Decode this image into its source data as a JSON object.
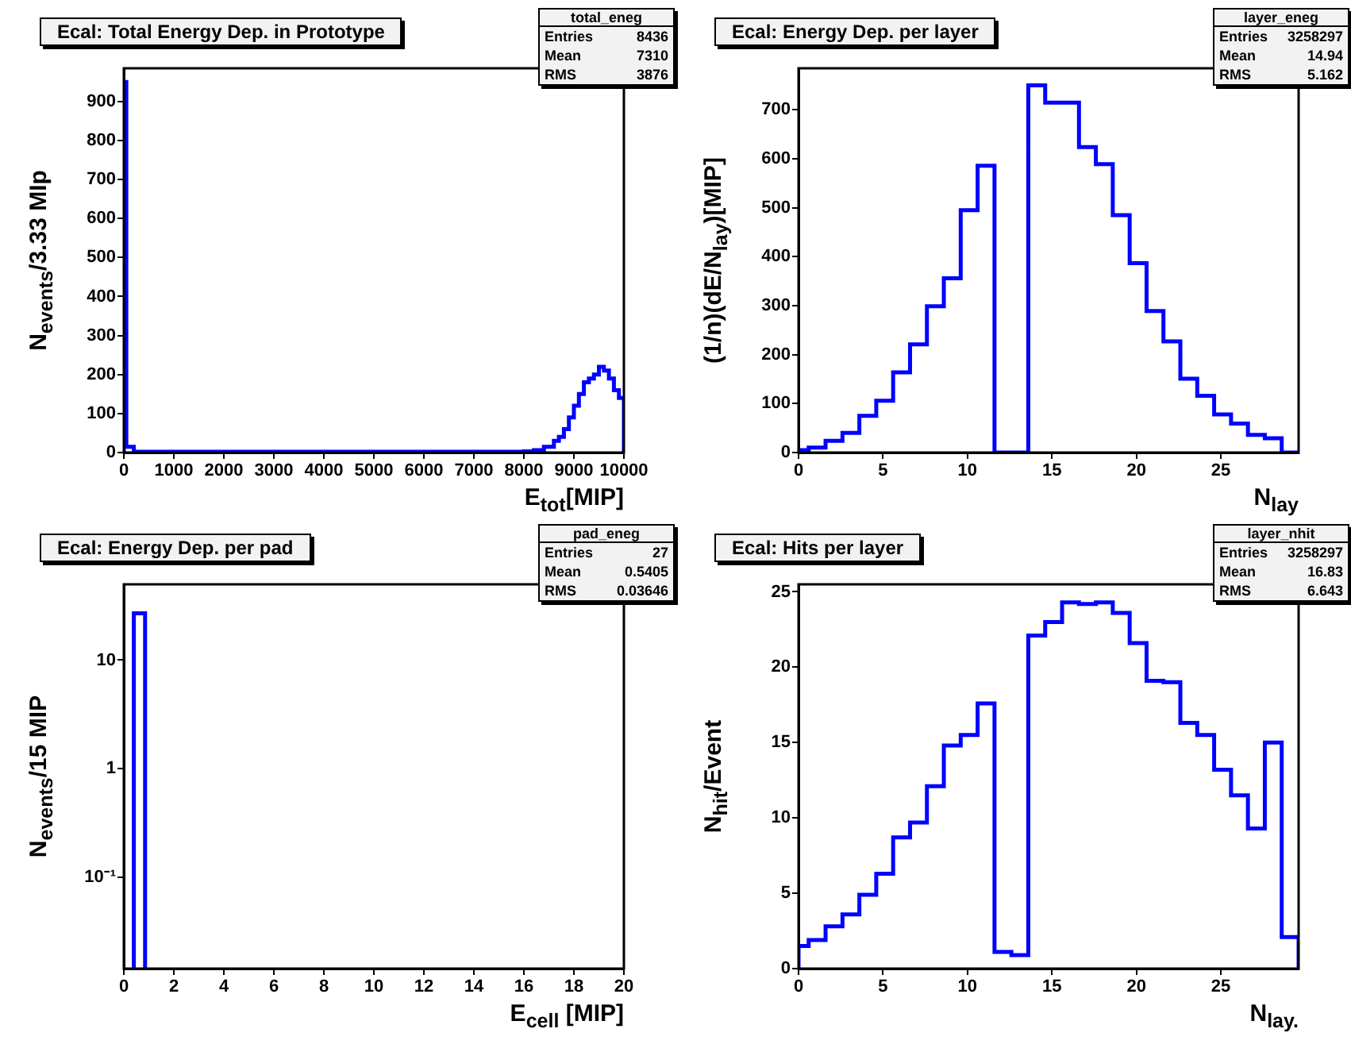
{
  "chart_data": [
    {
      "type": "histogram",
      "title": "Ecal: Total Energy Dep. in Prototype",
      "xlabel": "E$_{tot}$[MIP]",
      "ylabel": "N$_{events}$/3.33 MIp",
      "color": "#0000ff",
      "bins": [
        0,
        50,
        200,
        1000,
        2000,
        3000,
        4000,
        5000,
        6000,
        7000,
        8000,
        8200,
        8400,
        8600,
        8700,
        8800,
        8900,
        9000,
        9100,
        9200,
        9300,
        9400,
        9500,
        9600,
        9700,
        9800,
        9900,
        10000
      ],
      "values": [
        950,
        15,
        2,
        2,
        2,
        2,
        2,
        2,
        2,
        2,
        3,
        6,
        15,
        30,
        40,
        60,
        90,
        120,
        150,
        180,
        190,
        200,
        220,
        210,
        190,
        160,
        140
      ],
      "xlim": [
        0,
        10000
      ],
      "ylim": [
        0,
        985
      ],
      "xticks": [
        0,
        1000,
        2000,
        3000,
        4000,
        5000,
        6000,
        7000,
        8000,
        9000,
        10000
      ],
      "yticks": [
        0,
        100,
        200,
        300,
        400,
        500,
        600,
        700,
        800,
        900
      ],
      "grid": false,
      "legend": false,
      "annotations": [
        "total_eneg",
        "Entries 8436",
        "Mean 7310",
        "RMS 3876"
      ]
    },
    {
      "type": "histogram",
      "title": "Ecal: Energy Dep. per layer",
      "xlabel": "N$_{lay}$",
      "ylabel": "(1/n)(dE/N$_{lay}$)[MIP]",
      "color": "#0000ff",
      "bins": [
        0,
        0.6,
        1.6,
        2.6,
        3.6,
        4.6,
        5.6,
        6.6,
        7.6,
        8.6,
        9.6,
        10.6,
        11.6,
        12.6,
        13.6,
        14.6,
        15.6,
        16.6,
        17.6,
        18.6,
        19.6,
        20.6,
        21.6,
        22.6,
        23.6,
        24.6,
        25.6,
        26.6,
        27.6,
        28.6,
        29.6
      ],
      "values": [
        5,
        10,
        24,
        40,
        75,
        106,
        164,
        221,
        299,
        356,
        495,
        586,
        0,
        0,
        750,
        715,
        715,
        624,
        589,
        485,
        387,
        289,
        227,
        151,
        116,
        78,
        59,
        36,
        29,
        0
      ],
      "xlim": [
        0,
        29.6
      ],
      "ylim": [
        0,
        785
      ],
      "xticks": [
        0,
        5,
        10,
        15,
        20,
        25
      ],
      "yticks": [
        0,
        100,
        200,
        300,
        400,
        500,
        600,
        700
      ],
      "grid": false,
      "legend": false,
      "annotations": [
        "layer_eneg",
        "Entries 3258297",
        "Mean 14.94",
        "RMS 5.162"
      ]
    },
    {
      "type": "histogram",
      "title": "Ecal: Energy Dep. per pad",
      "xlabel": "E$_{cell}$ [MIP]",
      "ylabel": "N$_{events}$/15 MIP",
      "color": "#0000ff",
      "log": "y",
      "bins": [
        0.4,
        0.85
      ],
      "values": [
        27
      ],
      "xlim": [
        0,
        20
      ],
      "ylim": [
        0.0143,
        50
      ],
      "xticks": [
        0,
        2,
        4,
        6,
        8,
        10,
        12,
        14,
        16,
        18,
        20
      ],
      "yticks": [
        {
          "value": 0.1,
          "label": "10⁻¹"
        },
        1,
        10
      ],
      "grid": false,
      "legend": false,
      "annotations": [
        "pad_eneg",
        "Entries 27",
        "Mean 0.5405",
        "RMS 0.03646"
      ]
    },
    {
      "type": "histogram",
      "title": "Ecal: Hits per layer",
      "xlabel": "N$_{lay.}$",
      "ylabel": "N$_{hit}$/Event",
      "color": "#0000ff",
      "bins": [
        0,
        0.6,
        1.6,
        2.6,
        3.6,
        4.6,
        5.6,
        6.6,
        7.6,
        8.6,
        9.6,
        10.6,
        11.6,
        12.6,
        13.6,
        14.6,
        15.6,
        16.6,
        17.6,
        18.6,
        19.6,
        20.6,
        21.6,
        22.6,
        23.6,
        24.6,
        25.6,
        26.6,
        27.6,
        28.6,
        29.6
      ],
      "values": [
        1.5,
        1.9,
        2.8,
        3.6,
        4.9,
        6.3,
        8.7,
        9.7,
        12.1,
        14.8,
        15.5,
        17.6,
        1.1,
        0.9,
        22.1,
        23.0,
        24.3,
        24.2,
        24.3,
        23.6,
        21.6,
        19.1,
        19.0,
        16.3,
        15.5,
        13.2,
        11.5,
        9.3,
        15.0,
        2.1
      ],
      "xlim": [
        0,
        29.6
      ],
      "ylim": [
        0,
        25.5
      ],
      "xticks": [
        0,
        5,
        10,
        15,
        20,
        25
      ],
      "yticks": [
        0,
        5,
        10,
        15,
        20,
        25
      ],
      "grid": false,
      "legend": false,
      "annotations": [
        "layer_nhit",
        "Entries 3258297",
        "Mean 16.83",
        "RMS 6.643"
      ]
    }
  ]
}
